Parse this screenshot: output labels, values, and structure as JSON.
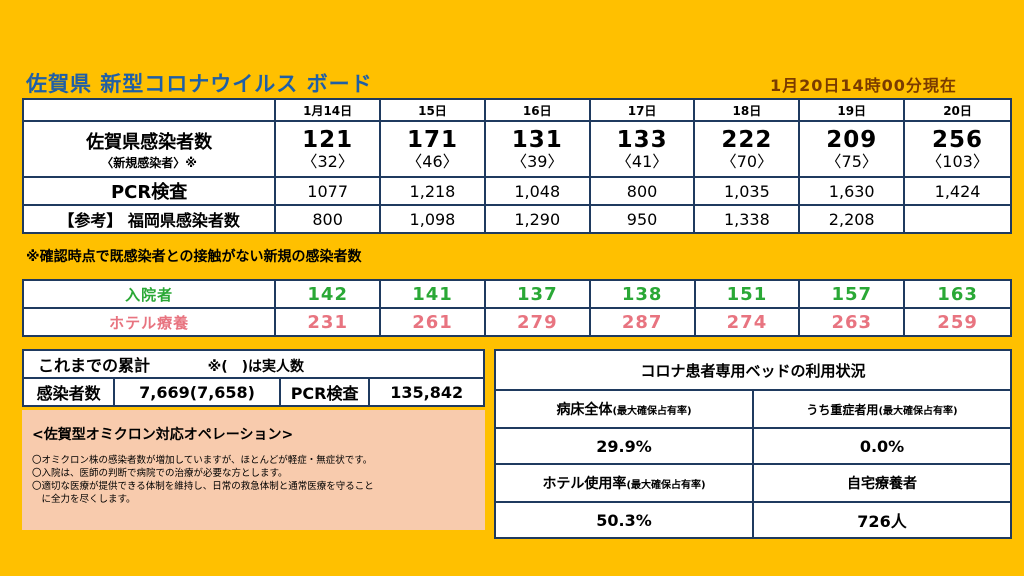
{
  "title": "佐賀県 新型コロナウイルス ボード",
  "as_of": "1月20日14時00分現在",
  "dates": [
    "1月14日",
    "15日",
    "16日",
    "17日",
    "18日",
    "19日",
    "20日"
  ],
  "infected_label": "佐賀県感染者数",
  "infected_sub_label": "〈新規感染者〉※",
  "infected": [
    "121",
    "171",
    "131",
    "133",
    "222",
    "209",
    "256"
  ],
  "infected_new": [
    "〈32〉",
    "〈46〉",
    "〈39〉",
    "〈41〉",
    "〈70〉",
    "〈75〉",
    "〈103〉"
  ],
  "pcr_label": "PCR検査",
  "pcr": [
    "1077",
    "1,218",
    "1,048",
    "800",
    "1,035",
    "1,630",
    "1,424"
  ],
  "fukuoka_label": "【参考】 福岡県感染者数",
  "fukuoka": [
    "800",
    "1,098",
    "1,290",
    "950",
    "1,338",
    "2,208",
    ""
  ],
  "note": "※確認時点で既感染者との接触がない新規の感染者数",
  "hospital_label": "入院者",
  "hospital": [
    "142",
    "141",
    "137",
    "138",
    "151",
    "157",
    "163"
  ],
  "hotel_label": "ホテル療養",
  "hotel": [
    "231",
    "261",
    "279",
    "287",
    "274",
    "263",
    "259"
  ],
  "cumulative": {
    "title": "これまでの累計",
    "note": "※(　)は実人数",
    "infected_label": "感染者数",
    "infected_value": "7,669(7,658)",
    "pcr_label": "PCR検査",
    "pcr_value": "135,842"
  },
  "omicron": {
    "heading": "<佐賀型オミクロン対応オペレーション>",
    "lines": [
      "〇オミクロン株の感染者数が増加していますが、ほとんどが軽症・無症状です。",
      "〇入院は、医師の判断で病院での治療が必要な方とします。",
      "〇適切な医療が提供できる体制を維持し、日常の救急体制と通常医療を守ること",
      "　に全力を尽くします。"
    ]
  },
  "beds": {
    "header": "コロナ患者専用ベッドの利用状況",
    "total_label": "病床全体",
    "total_note": "(最大確保占有率)",
    "severe_label": "うち重症者用",
    "severe_note": "(最大確保占有率)",
    "total_value": "29.9%",
    "severe_value": "0.0%",
    "hotel_label": "ホテル使用率",
    "hotel_note": "(最大確保占有率)",
    "home_label": "自宅療養者",
    "hotel_value": "50.3%",
    "home_value": "726人"
  }
}
